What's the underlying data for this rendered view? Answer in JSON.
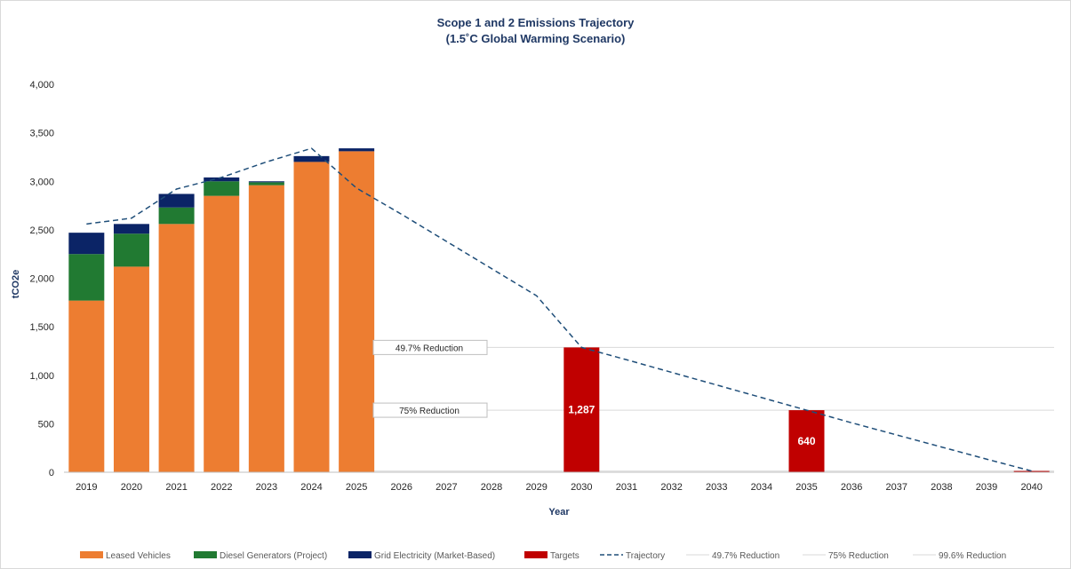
{
  "chart_data": {
    "type": "bar",
    "title": "Scope 1 and 2 Emissions Trajectory",
    "subtitle": "(1.5˚C Global Warming Scenario)",
    "xlabel": "Year",
    "ylabel": "tCO2e",
    "ylim": [
      0,
      4000
    ],
    "yticks": [
      "0",
      "500",
      "1,000",
      "1,500",
      "2,000",
      "2,500",
      "3,000",
      "3,500",
      "4,000"
    ],
    "ytick_values": [
      0,
      500,
      1000,
      1500,
      2000,
      2500,
      3000,
      3500,
      4000
    ],
    "categories": [
      "2019",
      "2020",
      "2021",
      "2022",
      "2023",
      "2024",
      "2025",
      "2026",
      "2027",
      "2028",
      "2029",
      "2030",
      "2031",
      "2032",
      "2033",
      "2034",
      "2035",
      "2036",
      "2037",
      "2038",
      "2039",
      "2040"
    ],
    "stacked_series": [
      {
        "name": "Leased Vehicles",
        "color": "#ed7d31",
        "values": [
          1770,
          2120,
          2560,
          2850,
          2960,
          3200,
          3310,
          null,
          null,
          null,
          null,
          null,
          null,
          null,
          null,
          null,
          null,
          null,
          null,
          null,
          null,
          null
        ]
      },
      {
        "name": "Diesel Generators (Project)",
        "color": "#217a32",
        "values": [
          480,
          340,
          170,
          150,
          30,
          0,
          0,
          null,
          null,
          null,
          null,
          null,
          null,
          null,
          null,
          null,
          null,
          null,
          null,
          null,
          null,
          null
        ]
      },
      {
        "name": "Grid Electricity (Market-Based)",
        "color": "#0b2466",
        "values": [
          220,
          100,
          140,
          40,
          10,
          60,
          30,
          null,
          null,
          null,
          null,
          null,
          null,
          null,
          null,
          null,
          null,
          null,
          null,
          null,
          null,
          null
        ]
      }
    ],
    "targets": {
      "name": "Targets",
      "color": "#c00000",
      "values": [
        null,
        null,
        null,
        null,
        null,
        null,
        null,
        null,
        null,
        null,
        null,
        1287,
        null,
        null,
        null,
        null,
        640,
        null,
        null,
        null,
        null,
        13
      ],
      "labels": [
        null,
        null,
        null,
        null,
        null,
        null,
        null,
        null,
        null,
        null,
        null,
        "1,287",
        null,
        null,
        null,
        null,
        "640",
        null,
        null,
        null,
        null,
        null
      ]
    },
    "trajectory": {
      "name": "Trajectory",
      "color": "#1f4e79",
      "style": "dashed",
      "values": [
        2560,
        2620,
        2920,
        3040,
        3200,
        3340,
        2930,
        2660,
        2380,
        2100,
        1820,
        1287,
        1160,
        1030,
        900,
        770,
        640,
        510,
        385,
        260,
        135,
        13
      ]
    },
    "reference_lines": [
      {
        "name": "49.7% Reduction",
        "value": 1287,
        "label": "49.7% Reduction"
      },
      {
        "name": "75% Reduction",
        "value": 640,
        "label": "75% Reduction"
      },
      {
        "name": "99.6% Reduction",
        "value": 13
      }
    ],
    "legend": {
      "position": "bottom",
      "items": [
        {
          "label": "Leased Vehicles",
          "kind": "bar",
          "color": "#ed7d31"
        },
        {
          "label": "Diesel Generators (Project)",
          "kind": "bar",
          "color": "#217a32"
        },
        {
          "label": "Grid Electricity (Market-Based)",
          "kind": "bar",
          "color": "#0b2466"
        },
        {
          "label": "Targets",
          "kind": "bar",
          "color": "#c00000"
        },
        {
          "label": "Trajectory",
          "kind": "dashed",
          "color": "#1f4e79"
        },
        {
          "label": "49.7% Reduction",
          "kind": "line",
          "color": "#d9d9d9"
        },
        {
          "label": "75% Reduction",
          "kind": "line",
          "color": "#d9d9d9"
        },
        {
          "label": "99.6% Reduction",
          "kind": "line",
          "color": "#d9d9d9"
        }
      ]
    },
    "grid": false
  }
}
